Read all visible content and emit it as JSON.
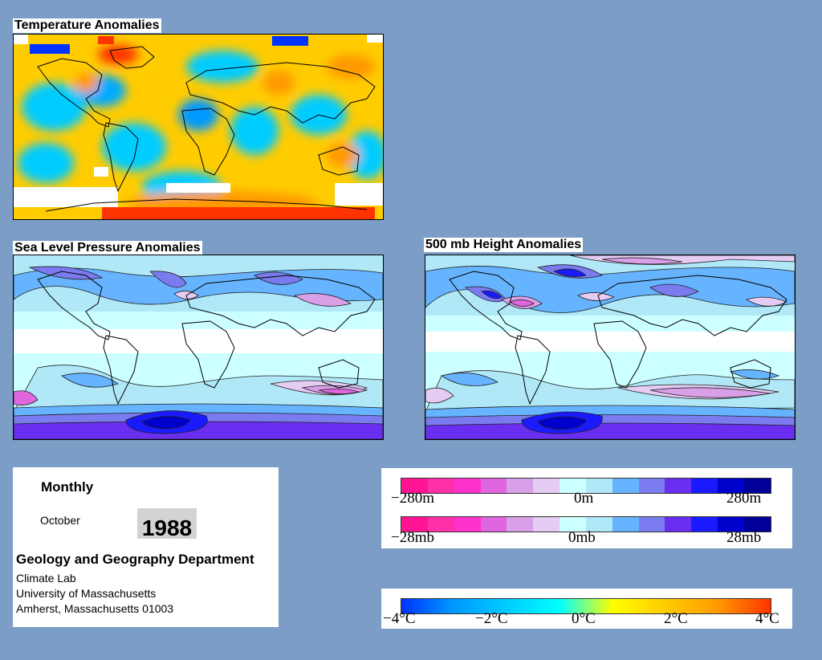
{
  "titles": {
    "temperature": "Temperature Anomalies",
    "slp": "Sea Level Pressure Anomalies",
    "height500": "500 mb Height Anomalies"
  },
  "info": {
    "period": "Monthly",
    "month": "October",
    "year": "1988",
    "department": "Geology and Geography Department",
    "lab": "Climate Lab",
    "university": "University of Massachusetts",
    "address": "Amherst, Massachusetts 01003"
  },
  "height_legend": {
    "min": "−280m",
    "mid": "0m",
    "max": "280m"
  },
  "pressure_legend": {
    "min": "−28mb",
    "mid": "0mb",
    "max": "28mb"
  },
  "temperature_legend": {
    "labels": [
      "−4°C",
      "−2°C",
      "0°C",
      "2°C",
      "4°C"
    ]
  },
  "colors": {
    "background": "#7b9dc6",
    "anomaly_scale": [
      "#ff1493",
      "#ff2fa8",
      "#ff33cc",
      "#e066e0",
      "#d9a0e8",
      "#e4ccf2",
      "#ccffff",
      "#b0e8f8",
      "#66b3ff",
      "#7b7bf0",
      "#6a2ef0",
      "#1a1aff",
      "#0000cc",
      "#000099"
    ],
    "temp_scale": [
      "#0033ff",
      "#0099ff",
      "#00ccff",
      "#00ffff",
      "#ffff00",
      "#ffcc00",
      "#ff9900",
      "#ff3300"
    ]
  }
}
